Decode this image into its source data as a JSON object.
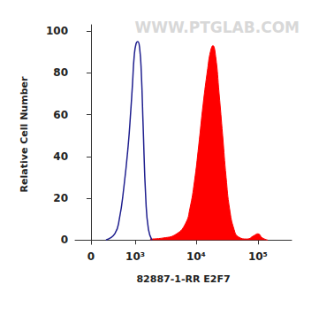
{
  "chart_data": {
    "type": "line",
    "x_label": "82887-1-RR E2F7",
    "y_label": "Relative Cell Number",
    "annotations": [
      "WWW.PTGLAB.COM"
    ],
    "log": "x",
    "grid": false,
    "xlim": [
      -250,
      350000
    ],
    "xticks": [
      0,
      {
        "value": 1000,
        "label": "10³"
      },
      {
        "value": 10000,
        "label": "10⁴"
      },
      {
        "value": 100000,
        "label": "10⁵"
      }
    ],
    "ylim": [
      -2,
      103
    ],
    "yticks": [
      0,
      20,
      40,
      60,
      80,
      100
    ],
    "series": [
      {
        "type": "line",
        "color": "#1f1f8f",
        "x": [
          235,
          404,
          505,
          620,
          748,
          835,
          897,
          960,
          1035,
          1108,
          1190,
          1272,
          1364,
          1512,
          1676,
          1912
        ],
        "values": [
          0,
          3,
          10,
          25,
          45,
          62,
          75,
          88,
          94,
          95,
          92,
          80,
          55,
          20,
          5,
          0
        ]
      },
      {
        "type": "area",
        "color": "#ff0000",
        "x": [
          1788,
          2950,
          4850,
          6760,
          7930,
          9400,
          11000,
          13000,
          15400,
          17000,
          18700,
          20700,
          23600,
          26900,
          30600,
          34800,
          41200,
          48400,
          67300,
          84800,
          100000,
          118000,
          144000
        ],
        "values": [
          0.5,
          1,
          3,
          8,
          15,
          28,
          45,
          65,
          82,
          90,
          93,
          88,
          70,
          50,
          30,
          15,
          5,
          1.5,
          0.5,
          2,
          3,
          1,
          0
        ]
      }
    ]
  }
}
